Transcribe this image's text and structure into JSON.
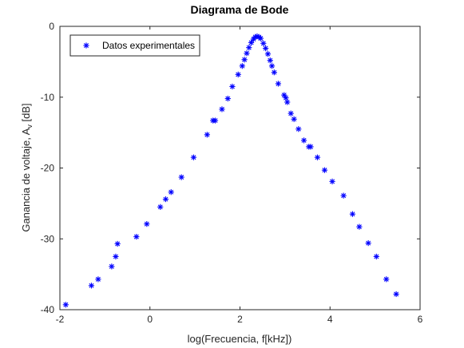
{
  "chart_data": {
    "type": "scatter",
    "title": "Diagrama de Bode",
    "xlabel": "log(Frecuencia, f[kHz])",
    "ylabel_main": "Ganancia de voltaje, A",
    "ylabel_sub": "v",
    "ylabel_unit": " [dB]",
    "xlim": [
      -2,
      6
    ],
    "ylim": [
      -40,
      0
    ],
    "xticks": [
      -2,
      0,
      2,
      4,
      6
    ],
    "xtick_labels": [
      "-2",
      "0",
      "2",
      "4",
      "6"
    ],
    "yticks": [
      0,
      -10,
      -20,
      -30,
      -40
    ],
    "ytick_labels": [
      "0",
      "-10",
      "-20",
      "-30",
      "-40"
    ],
    "grid": false,
    "legend_position": "top-left",
    "marker_color": "#0000ff",
    "series": [
      {
        "name": "Datos experimentales",
        "marker": "asterisk",
        "points": [
          [
            -1.87,
            -39.3
          ],
          [
            -1.3,
            -36.6
          ],
          [
            -1.15,
            -35.7
          ],
          [
            -0.85,
            -33.9
          ],
          [
            -0.76,
            -32.5
          ],
          [
            -0.72,
            -30.7
          ],
          [
            -0.3,
            -29.7
          ],
          [
            -0.07,
            -27.9
          ],
          [
            0.23,
            -25.5
          ],
          [
            0.35,
            -24.4
          ],
          [
            0.47,
            -23.4
          ],
          [
            0.7,
            -21.3
          ],
          [
            0.97,
            -18.5
          ],
          [
            1.27,
            -15.3
          ],
          [
            1.4,
            -13.3
          ],
          [
            1.45,
            -13.3
          ],
          [
            1.6,
            -11.7
          ],
          [
            1.73,
            -10.2
          ],
          [
            1.83,
            -8.5
          ],
          [
            1.96,
            -6.8
          ],
          [
            2.05,
            -5.6
          ],
          [
            2.1,
            -4.7
          ],
          [
            2.15,
            -3.8
          ],
          [
            2.2,
            -3.0
          ],
          [
            2.25,
            -2.3
          ],
          [
            2.3,
            -1.8
          ],
          [
            2.34,
            -1.5
          ],
          [
            2.38,
            -1.4
          ],
          [
            2.42,
            -1.5
          ],
          [
            2.46,
            -1.7
          ],
          [
            2.52,
            -2.4
          ],
          [
            2.57,
            -3.1
          ],
          [
            2.62,
            -3.9
          ],
          [
            2.67,
            -4.8
          ],
          [
            2.71,
            -5.6
          ],
          [
            2.76,
            -6.5
          ],
          [
            2.85,
            -8.1
          ],
          [
            2.98,
            -9.7
          ],
          [
            3.02,
            -10.1
          ],
          [
            3.05,
            -10.7
          ],
          [
            3.13,
            -12.3
          ],
          [
            3.2,
            -13.1
          ],
          [
            3.3,
            -14.5
          ],
          [
            3.42,
            -16.1
          ],
          [
            3.53,
            -17.0
          ],
          [
            3.57,
            -17.0
          ],
          [
            3.72,
            -18.5
          ],
          [
            3.88,
            -20.3
          ],
          [
            4.05,
            -21.9
          ],
          [
            4.3,
            -23.9
          ],
          [
            4.5,
            -26.5
          ],
          [
            4.65,
            -28.3
          ],
          [
            4.85,
            -30.6
          ],
          [
            5.03,
            -32.5
          ],
          [
            5.25,
            -35.7
          ],
          [
            5.47,
            -37.8
          ]
        ]
      }
    ]
  }
}
